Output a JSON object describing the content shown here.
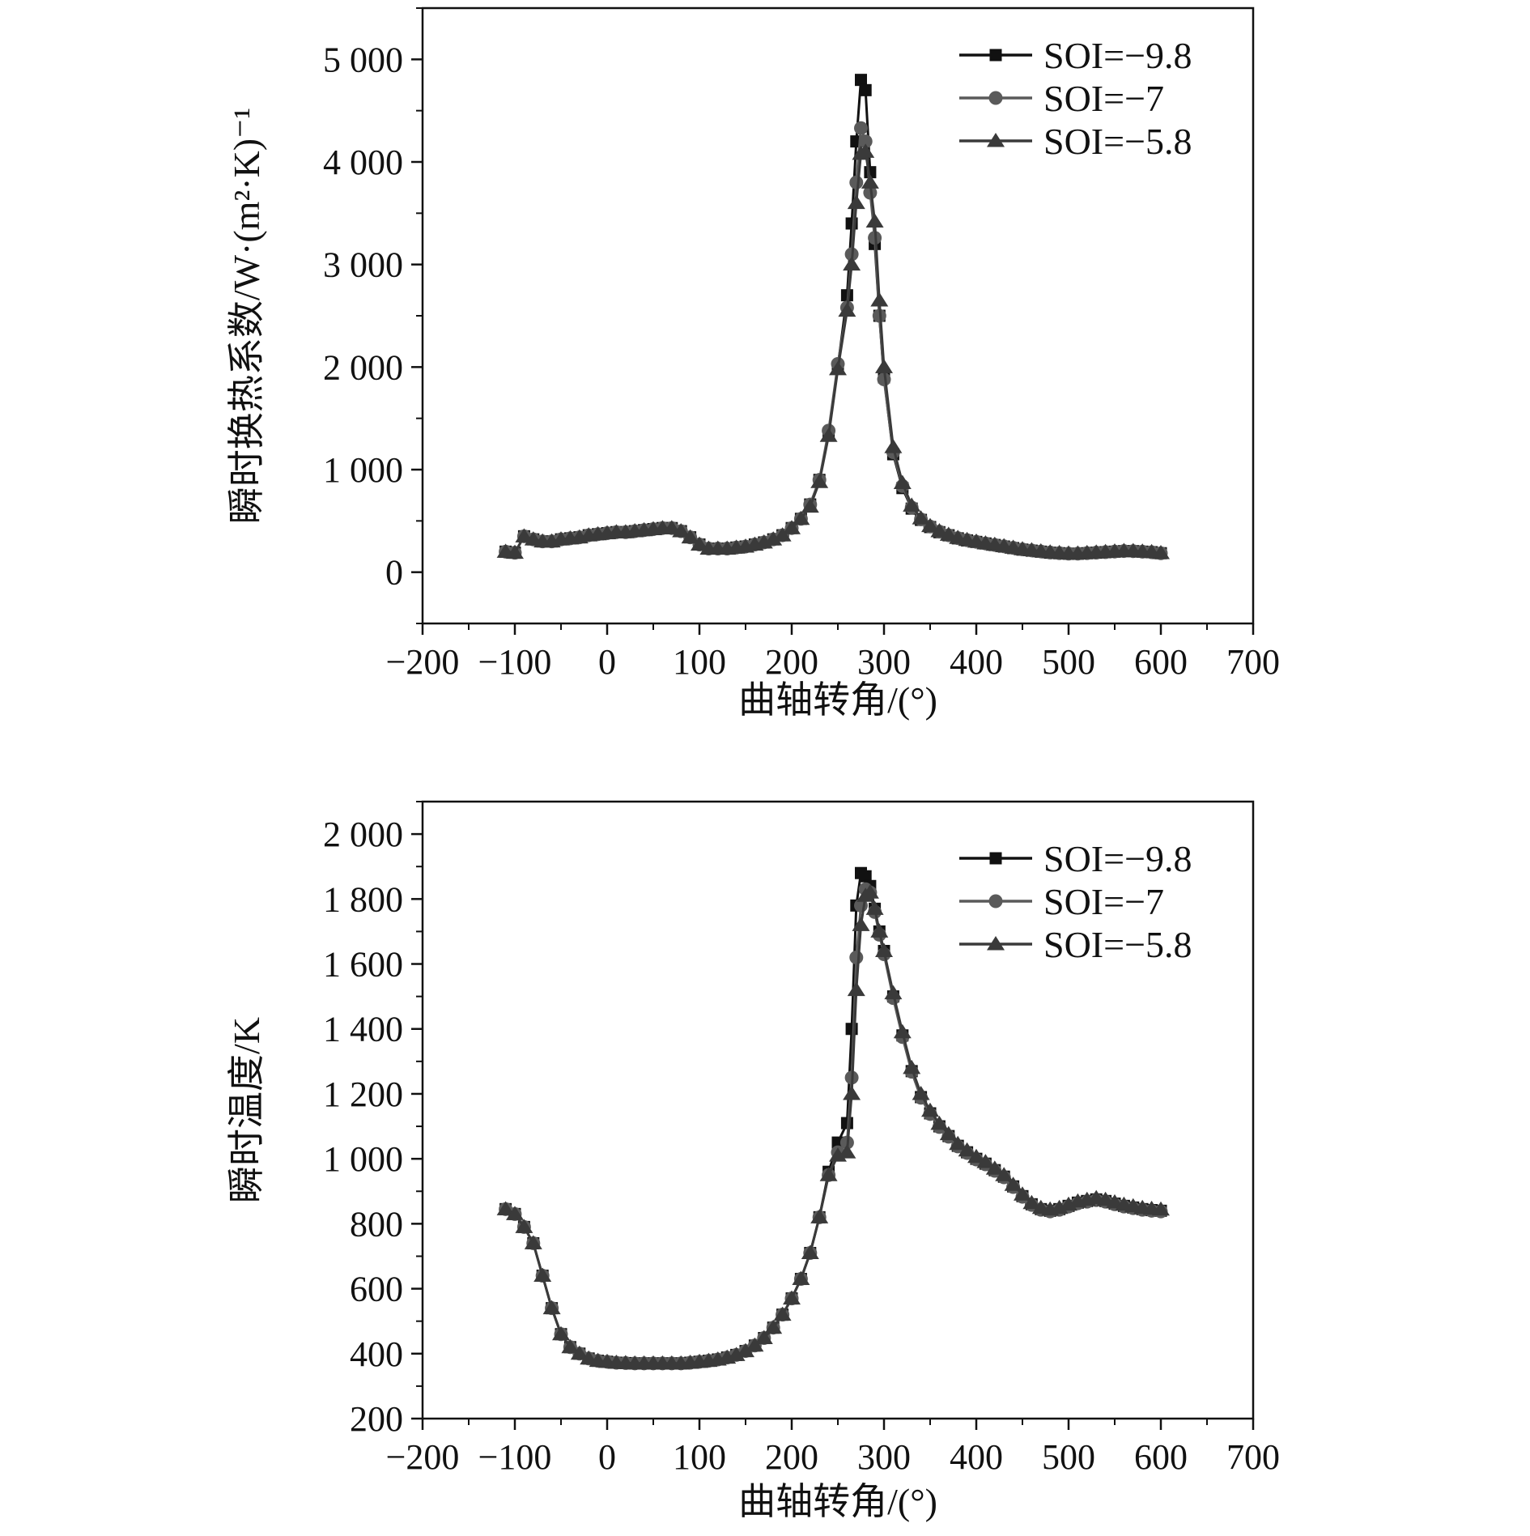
{
  "chart_data": [
    {
      "type": "line",
      "title": "",
      "xlabel": "曲轴转角/(°)",
      "ylabel": "瞬时换热系数/W·(m²·K)⁻¹",
      "xlim": [
        -200,
        700
      ],
      "ylim": [
        -500,
        5500
      ],
      "x_ticks": [
        -200,
        -100,
        0,
        100,
        200,
        300,
        400,
        500,
        600,
        700
      ],
      "x_tick_labels": [
        "−200",
        "−100",
        "0",
        "100",
        "200",
        "300",
        "400",
        "500",
        "600",
        "700"
      ],
      "y_ticks": [
        0,
        1000,
        2000,
        3000,
        4000,
        5000
      ],
      "y_tick_labels": [
        "0",
        "1 000",
        "2 000",
        "3 000",
        "4 000",
        "5 000"
      ],
      "grid": false,
      "legend_position": "top-right",
      "x": [
        -110,
        -100,
        -90,
        -80,
        -70,
        -60,
        -50,
        -40,
        -30,
        -20,
        -10,
        0,
        10,
        20,
        30,
        40,
        50,
        60,
        70,
        80,
        90,
        100,
        110,
        120,
        130,
        140,
        150,
        160,
        170,
        180,
        190,
        200,
        210,
        220,
        230,
        240,
        250,
        260,
        265,
        270,
        275,
        280,
        285,
        290,
        295,
        300,
        310,
        320,
        330,
        340,
        350,
        360,
        370,
        380,
        390,
        400,
        410,
        420,
        430,
        440,
        450,
        460,
        470,
        480,
        490,
        500,
        510,
        520,
        530,
        540,
        550,
        560,
        570,
        580,
        590,
        600
      ],
      "series": [
        {
          "name": "SOI=−9.8",
          "color": "#111111",
          "marker": "square",
          "values": [
            200,
            190,
            350,
            320,
            300,
            300,
            320,
            330,
            340,
            360,
            370,
            380,
            390,
            390,
            400,
            410,
            420,
            430,
            430,
            400,
            340,
            270,
            230,
            230,
            230,
            240,
            250,
            270,
            290,
            320,
            360,
            430,
            520,
            660,
            900,
            1350,
            2000,
            2700,
            3400,
            4200,
            4800,
            4700,
            3900,
            3200,
            2500,
            1900,
            1150,
            820,
            620,
            510,
            440,
            390,
            360,
            330,
            310,
            295,
            280,
            265,
            250,
            235,
            220,
            210,
            200,
            190,
            185,
            180,
            180,
            185,
            190,
            195,
            200,
            205,
            205,
            200,
            195,
            185
          ]
        },
        {
          "name": "SOI=−7",
          "color": "#5a5a5a",
          "marker": "circle",
          "values": [
            200,
            190,
            350,
            320,
            300,
            300,
            320,
            330,
            340,
            360,
            370,
            380,
            390,
            390,
            400,
            410,
            420,
            430,
            430,
            400,
            340,
            270,
            230,
            230,
            230,
            240,
            250,
            270,
            290,
            320,
            360,
            430,
            520,
            660,
            900,
            1380,
            2030,
            2580,
            3100,
            3800,
            4330,
            4200,
            3700,
            3260,
            2500,
            1880,
            1170,
            840,
            630,
            515,
            445,
            395,
            360,
            332,
            312,
            296,
            280,
            266,
            252,
            237,
            222,
            212,
            202,
            192,
            186,
            181,
            181,
            186,
            191,
            196,
            201,
            206,
            205,
            200,
            195,
            185
          ]
        },
        {
          "name": "SOI=−5.8",
          "color": "#3a3a3a",
          "marker": "triangle",
          "values": [
            200,
            190,
            350,
            320,
            300,
            300,
            320,
            330,
            340,
            360,
            370,
            380,
            390,
            390,
            400,
            410,
            420,
            430,
            430,
            400,
            340,
            270,
            230,
            230,
            230,
            240,
            250,
            270,
            290,
            320,
            360,
            430,
            520,
            640,
            880,
            1330,
            1980,
            2550,
            3000,
            3600,
            4080,
            4100,
            3800,
            3420,
            2650,
            2000,
            1220,
            870,
            650,
            525,
            450,
            400,
            365,
            335,
            315,
            298,
            282,
            268,
            254,
            239,
            224,
            214,
            204,
            194,
            188,
            183,
            183,
            188,
            193,
            198,
            203,
            208,
            207,
            202,
            197,
            187
          ]
        }
      ]
    },
    {
      "type": "line",
      "title": "",
      "xlabel": "曲轴转角/(°)",
      "ylabel": "瞬时温度/K",
      "xlim": [
        -200,
        700
      ],
      "ylim": [
        200,
        2100
      ],
      "x_ticks": [
        -200,
        -100,
        0,
        100,
        200,
        300,
        400,
        500,
        600,
        700
      ],
      "x_tick_labels": [
        "−200",
        "−100",
        "0",
        "100",
        "200",
        "300",
        "400",
        "500",
        "600",
        "700"
      ],
      "y_ticks": [
        200,
        400,
        600,
        800,
        1000,
        1200,
        1400,
        1600,
        1800,
        2000
      ],
      "y_tick_labels": [
        "200",
        "400",
        "600",
        "800",
        "1 000",
        "1 200",
        "1 400",
        "1 600",
        "1 800",
        "2 000"
      ],
      "grid": false,
      "legend_position": "top-right",
      "x": [
        -110,
        -100,
        -90,
        -80,
        -70,
        -60,
        -50,
        -40,
        -30,
        -20,
        -10,
        0,
        10,
        20,
        30,
        40,
        50,
        60,
        70,
        80,
        90,
        100,
        110,
        120,
        130,
        140,
        150,
        160,
        170,
        180,
        190,
        200,
        210,
        220,
        230,
        240,
        250,
        260,
        265,
        270,
        275,
        280,
        285,
        290,
        295,
        300,
        310,
        320,
        330,
        340,
        350,
        360,
        370,
        380,
        390,
        400,
        410,
        420,
        430,
        440,
        450,
        460,
        470,
        480,
        490,
        500,
        510,
        520,
        530,
        540,
        550,
        560,
        570,
        580,
        590,
        600
      ],
      "series": [
        {
          "name": "SOI=−9.8",
          "color": "#111111",
          "marker": "square",
          "values": [
            845,
            830,
            790,
            740,
            640,
            540,
            460,
            420,
            400,
            385,
            378,
            375,
            372,
            371,
            370,
            370,
            370,
            370,
            370,
            370,
            372,
            375,
            378,
            382,
            388,
            396,
            408,
            425,
            448,
            480,
            520,
            570,
            630,
            710,
            820,
            960,
            1050,
            1110,
            1400,
            1780,
            1880,
            1870,
            1840,
            1770,
            1700,
            1640,
            1500,
            1380,
            1270,
            1190,
            1140,
            1100,
            1070,
            1040,
            1020,
            1000,
            985,
            965,
            945,
            915,
            885,
            860,
            845,
            840,
            845,
            855,
            865,
            870,
            875,
            870,
            862,
            855,
            850,
            845,
            842,
            840
          ]
        },
        {
          "name": "SOI=−7",
          "color": "#5a5a5a",
          "marker": "circle",
          "values": [
            845,
            830,
            790,
            740,
            640,
            540,
            460,
            420,
            400,
            385,
            378,
            375,
            372,
            371,
            370,
            370,
            370,
            370,
            370,
            370,
            372,
            375,
            378,
            382,
            388,
            396,
            408,
            425,
            448,
            480,
            520,
            570,
            630,
            710,
            820,
            950,
            1020,
            1050,
            1250,
            1620,
            1780,
            1830,
            1820,
            1760,
            1690,
            1630,
            1495,
            1375,
            1268,
            1188,
            1138,
            1098,
            1068,
            1038,
            1018,
            998,
            983,
            963,
            943,
            913,
            883,
            858,
            843,
            838,
            843,
            853,
            863,
            868,
            873,
            868,
            860,
            853,
            848,
            843,
            840,
            838
          ]
        },
        {
          "name": "SOI=−5.8",
          "color": "#3a3a3a",
          "marker": "triangle",
          "values": [
            845,
            830,
            790,
            740,
            640,
            540,
            460,
            420,
            400,
            385,
            378,
            375,
            372,
            371,
            370,
            370,
            370,
            370,
            370,
            370,
            372,
            375,
            378,
            382,
            388,
            396,
            408,
            425,
            448,
            480,
            520,
            570,
            630,
            710,
            820,
            950,
            1010,
            1020,
            1200,
            1520,
            1720,
            1810,
            1820,
            1770,
            1700,
            1640,
            1510,
            1390,
            1280,
            1200,
            1148,
            1108,
            1076,
            1046,
            1026,
            1006,
            990,
            970,
            950,
            920,
            890,
            864,
            849,
            844,
            849,
            859,
            869,
            874,
            879,
            874,
            866,
            859,
            854,
            849,
            846,
            844
          ]
        }
      ]
    }
  ]
}
